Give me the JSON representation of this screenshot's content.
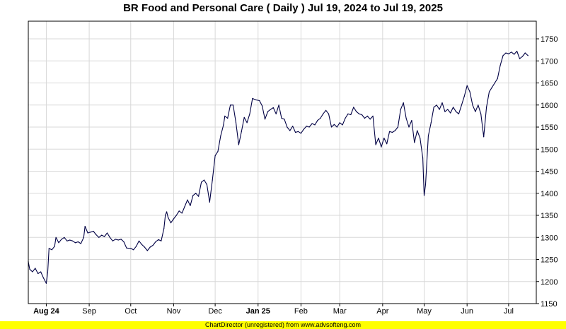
{
  "title": "BR Food and Personal Care ( Daily ) Jul 19, 2024 to Jul 19, 2025",
  "footer": "ChartDirector (unregistered) from www.advsofteng.com",
  "colors": {
    "line": "#000044",
    "grid": "#d8d8d8",
    "border": "#000000",
    "footer_bg": "#ffff00"
  },
  "chart_data": {
    "type": "line",
    "title": "BR Food and Personal Care ( Daily ) Jul 19, 2024 to Jul 19, 2025",
    "xlabel": "",
    "ylabel": "",
    "ylim": [
      1150,
      1790
    ],
    "xlim": [
      "2024-07-19",
      "2025-07-21"
    ],
    "y_axis_side": "right",
    "grid": true,
    "y_ticks": [
      1150,
      1200,
      1250,
      1300,
      1350,
      1400,
      1450,
      1500,
      1550,
      1600,
      1650,
      1700,
      1750
    ],
    "x_ticks": [
      {
        "date": "2024-08-01",
        "label": "Aug 24",
        "bold": true
      },
      {
        "date": "2024-09-01",
        "label": "Sep",
        "bold": false
      },
      {
        "date": "2024-10-01",
        "label": "Oct",
        "bold": false
      },
      {
        "date": "2024-11-01",
        "label": "Nov",
        "bold": false
      },
      {
        "date": "2024-12-01",
        "label": "Dec",
        "bold": false
      },
      {
        "date": "2025-01-01",
        "label": "Jan 25",
        "bold": true
      },
      {
        "date": "2025-02-01",
        "label": "Feb",
        "bold": false
      },
      {
        "date": "2025-03-01",
        "label": "Mar",
        "bold": false
      },
      {
        "date": "2025-04-01",
        "label": "Apr",
        "bold": false
      },
      {
        "date": "2025-05-01",
        "label": "May",
        "bold": false
      },
      {
        "date": "2025-06-01",
        "label": "Jun",
        "bold": false
      },
      {
        "date": "2025-07-01",
        "label": "Jul",
        "bold": false
      }
    ],
    "series": [
      {
        "values": [
          [
            "2024-07-19",
            1245
          ],
          [
            "2024-07-20",
            1228
          ],
          [
            "2024-07-22",
            1222
          ],
          [
            "2024-07-24",
            1230
          ],
          [
            "2024-07-26",
            1218
          ],
          [
            "2024-07-28",
            1222
          ],
          [
            "2024-07-30",
            1208
          ],
          [
            "2024-08-01",
            1196
          ],
          [
            "2024-08-02",
            1220
          ],
          [
            "2024-08-03",
            1275
          ],
          [
            "2024-08-05",
            1272
          ],
          [
            "2024-08-07",
            1280
          ],
          [
            "2024-08-08",
            1300
          ],
          [
            "2024-08-10",
            1288
          ],
          [
            "2024-08-12",
            1296
          ],
          [
            "2024-08-14",
            1300
          ],
          [
            "2024-08-16",
            1292
          ],
          [
            "2024-08-18",
            1294
          ],
          [
            "2024-08-20",
            1292
          ],
          [
            "2024-08-22",
            1288
          ],
          [
            "2024-08-24",
            1290
          ],
          [
            "2024-08-26",
            1286
          ],
          [
            "2024-08-28",
            1300
          ],
          [
            "2024-08-29",
            1325
          ],
          [
            "2024-08-31",
            1310
          ],
          [
            "2024-09-02",
            1312
          ],
          [
            "2024-09-04",
            1314
          ],
          [
            "2024-09-06",
            1306
          ],
          [
            "2024-09-08",
            1300
          ],
          [
            "2024-09-10",
            1305
          ],
          [
            "2024-09-12",
            1302
          ],
          [
            "2024-09-14",
            1310
          ],
          [
            "2024-09-16",
            1300
          ],
          [
            "2024-09-18",
            1292
          ],
          [
            "2024-09-20",
            1296
          ],
          [
            "2024-09-22",
            1294
          ],
          [
            "2024-09-24",
            1296
          ],
          [
            "2024-09-26",
            1290
          ],
          [
            "2024-09-28",
            1276
          ],
          [
            "2024-10-01",
            1275
          ],
          [
            "2024-10-03",
            1272
          ],
          [
            "2024-10-05",
            1280
          ],
          [
            "2024-10-07",
            1292
          ],
          [
            "2024-10-09",
            1284
          ],
          [
            "2024-10-11",
            1278
          ],
          [
            "2024-10-13",
            1270
          ],
          [
            "2024-10-15",
            1278
          ],
          [
            "2024-10-17",
            1282
          ],
          [
            "2024-10-19",
            1290
          ],
          [
            "2024-10-21",
            1295
          ],
          [
            "2024-10-23",
            1292
          ],
          [
            "2024-10-25",
            1320
          ],
          [
            "2024-10-26",
            1350
          ],
          [
            "2024-10-27",
            1358
          ],
          [
            "2024-10-28",
            1345
          ],
          [
            "2024-10-30",
            1333
          ],
          [
            "2024-11-01",
            1342
          ],
          [
            "2024-11-03",
            1350
          ],
          [
            "2024-11-05",
            1360
          ],
          [
            "2024-11-07",
            1355
          ],
          [
            "2024-11-09",
            1370
          ],
          [
            "2024-11-11",
            1385
          ],
          [
            "2024-11-13",
            1372
          ],
          [
            "2024-11-15",
            1395
          ],
          [
            "2024-11-17",
            1400
          ],
          [
            "2024-11-19",
            1393
          ],
          [
            "2024-11-21",
            1425
          ],
          [
            "2024-11-23",
            1430
          ],
          [
            "2024-11-25",
            1420
          ],
          [
            "2024-11-27",
            1380
          ],
          [
            "2024-11-29",
            1430
          ],
          [
            "2024-12-01",
            1485
          ],
          [
            "2024-12-03",
            1495
          ],
          [
            "2024-12-05",
            1530
          ],
          [
            "2024-12-07",
            1555
          ],
          [
            "2024-12-08",
            1575
          ],
          [
            "2024-12-10",
            1570
          ],
          [
            "2024-12-12",
            1600
          ],
          [
            "2024-12-14",
            1600
          ],
          [
            "2024-12-16",
            1560
          ],
          [
            "2024-12-18",
            1510
          ],
          [
            "2024-12-20",
            1540
          ],
          [
            "2024-12-22",
            1572
          ],
          [
            "2024-12-24",
            1560
          ],
          [
            "2024-12-26",
            1580
          ],
          [
            "2024-12-28",
            1615
          ],
          [
            "2024-12-30",
            1612
          ],
          [
            "2025-01-02",
            1610
          ],
          [
            "2025-01-04",
            1598
          ],
          [
            "2025-01-06",
            1568
          ],
          [
            "2025-01-08",
            1585
          ],
          [
            "2025-01-10",
            1590
          ],
          [
            "2025-01-12",
            1594
          ],
          [
            "2025-01-14",
            1580
          ],
          [
            "2025-01-16",
            1600
          ],
          [
            "2025-01-18",
            1570
          ],
          [
            "2025-01-20",
            1568
          ],
          [
            "2025-01-22",
            1550
          ],
          [
            "2025-01-24",
            1542
          ],
          [
            "2025-01-26",
            1552
          ],
          [
            "2025-01-28",
            1538
          ],
          [
            "2025-01-30",
            1540
          ],
          [
            "2025-02-01",
            1536
          ],
          [
            "2025-02-03",
            1545
          ],
          [
            "2025-02-05",
            1552
          ],
          [
            "2025-02-07",
            1550
          ],
          [
            "2025-02-09",
            1558
          ],
          [
            "2025-02-11",
            1555
          ],
          [
            "2025-02-13",
            1565
          ],
          [
            "2025-02-15",
            1570
          ],
          [
            "2025-02-17",
            1580
          ],
          [
            "2025-02-19",
            1588
          ],
          [
            "2025-02-21",
            1580
          ],
          [
            "2025-02-23",
            1550
          ],
          [
            "2025-02-25",
            1556
          ],
          [
            "2025-02-27",
            1550
          ],
          [
            "2025-03-01",
            1560
          ],
          [
            "2025-03-03",
            1555
          ],
          [
            "2025-03-05",
            1570
          ],
          [
            "2025-03-07",
            1580
          ],
          [
            "2025-03-09",
            1578
          ],
          [
            "2025-03-11",
            1595
          ],
          [
            "2025-03-13",
            1585
          ],
          [
            "2025-03-15",
            1580
          ],
          [
            "2025-03-17",
            1578
          ],
          [
            "2025-03-19",
            1570
          ],
          [
            "2025-03-21",
            1575
          ],
          [
            "2025-03-23",
            1568
          ],
          [
            "2025-03-25",
            1575
          ],
          [
            "2025-03-27",
            1510
          ],
          [
            "2025-03-29",
            1525
          ],
          [
            "2025-03-31",
            1505
          ],
          [
            "2025-04-02",
            1525
          ],
          [
            "2025-04-04",
            1512
          ],
          [
            "2025-04-06",
            1540
          ],
          [
            "2025-04-08",
            1538
          ],
          [
            "2025-04-10",
            1542
          ],
          [
            "2025-04-12",
            1550
          ],
          [
            "2025-04-14",
            1590
          ],
          [
            "2025-04-16",
            1605
          ],
          [
            "2025-04-18",
            1570
          ],
          [
            "2025-04-20",
            1550
          ],
          [
            "2025-04-22",
            1565
          ],
          [
            "2025-04-24",
            1515
          ],
          [
            "2025-04-26",
            1542
          ],
          [
            "2025-04-28",
            1525
          ],
          [
            "2025-04-30",
            1480
          ],
          [
            "2025-05-01",
            1395
          ],
          [
            "2025-05-02",
            1420
          ],
          [
            "2025-05-04",
            1530
          ],
          [
            "2025-05-06",
            1560
          ],
          [
            "2025-05-08",
            1595
          ],
          [
            "2025-05-10",
            1600
          ],
          [
            "2025-05-12",
            1590
          ],
          [
            "2025-05-14",
            1605
          ],
          [
            "2025-05-16",
            1585
          ],
          [
            "2025-05-18",
            1590
          ],
          [
            "2025-05-20",
            1582
          ],
          [
            "2025-05-22",
            1595
          ],
          [
            "2025-05-24",
            1585
          ],
          [
            "2025-05-26",
            1580
          ],
          [
            "2025-05-28",
            1600
          ],
          [
            "2025-05-30",
            1620
          ],
          [
            "2025-06-01",
            1644
          ],
          [
            "2025-06-03",
            1630
          ],
          [
            "2025-06-05",
            1600
          ],
          [
            "2025-06-07",
            1585
          ],
          [
            "2025-06-09",
            1600
          ],
          [
            "2025-06-11",
            1580
          ],
          [
            "2025-06-13",
            1528
          ],
          [
            "2025-06-15",
            1595
          ],
          [
            "2025-06-17",
            1630
          ],
          [
            "2025-06-19",
            1640
          ],
          [
            "2025-06-21",
            1650
          ],
          [
            "2025-06-23",
            1660
          ],
          [
            "2025-06-25",
            1690
          ],
          [
            "2025-06-27",
            1712
          ],
          [
            "2025-06-29",
            1718
          ],
          [
            "2025-07-01",
            1716
          ],
          [
            "2025-07-03",
            1720
          ],
          [
            "2025-07-05",
            1715
          ],
          [
            "2025-07-07",
            1722
          ],
          [
            "2025-07-09",
            1705
          ],
          [
            "2025-07-11",
            1710
          ],
          [
            "2025-07-13",
            1718
          ],
          [
            "2025-07-15",
            1712
          ]
        ]
      }
    ]
  }
}
